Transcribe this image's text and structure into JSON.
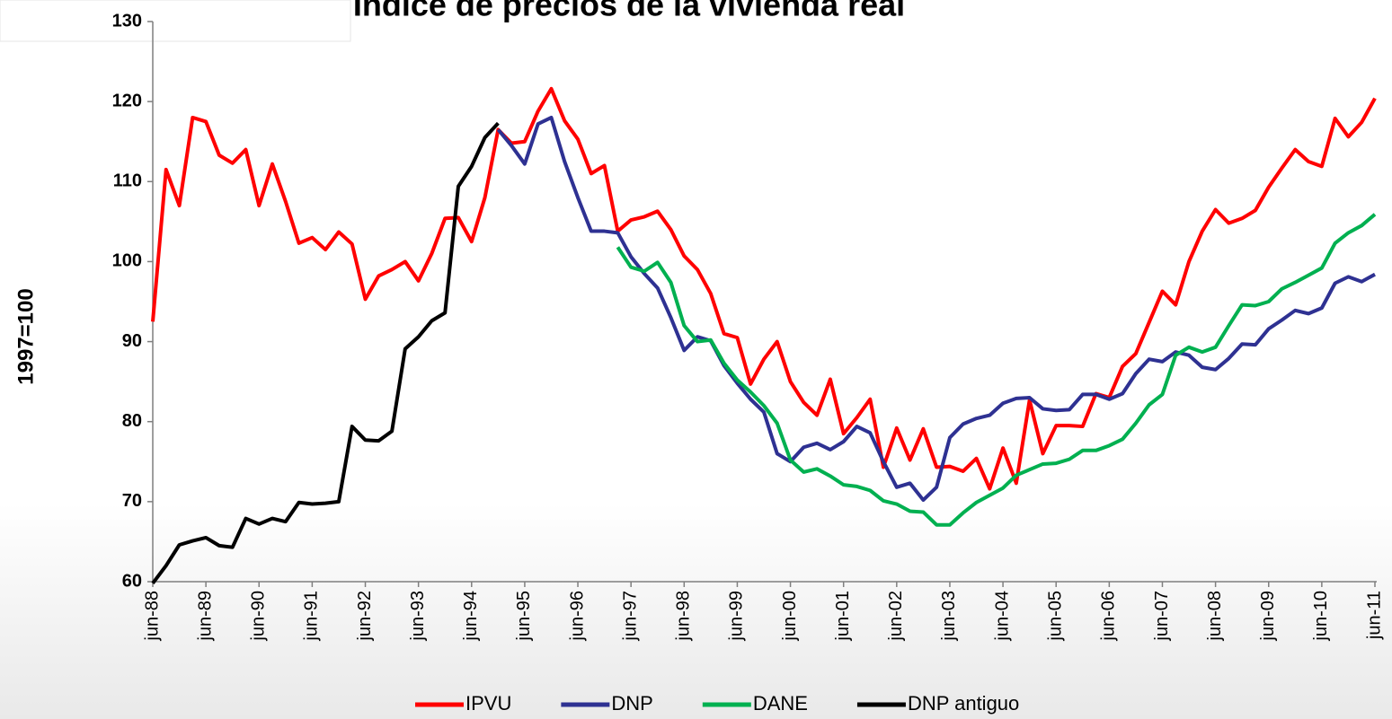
{
  "chart_data": {
    "type": "line",
    "title": "Índice de precios de la vivienda real",
    "y_label": "1997=100",
    "ylim": [
      60,
      130
    ],
    "yticks": [
      60,
      70,
      80,
      90,
      100,
      110,
      120,
      130
    ],
    "categories": [
      "jun-88",
      null,
      null,
      null,
      "jun-89",
      null,
      null,
      null,
      "jun-90",
      null,
      null,
      null,
      "jun-91",
      null,
      null,
      null,
      "jun-92",
      null,
      null,
      null,
      "jun-93",
      null,
      null,
      null,
      "jun-94",
      null,
      null,
      null,
      "jun-95",
      null,
      null,
      null,
      "jun-96",
      null,
      null,
      null,
      "jun-97",
      null,
      null,
      null,
      "jun-98",
      null,
      null,
      null,
      "jun-99",
      null,
      null,
      null,
      "jun-00",
      null,
      null,
      null,
      "jun-01",
      null,
      null,
      null,
      "jun-02",
      null,
      null,
      null,
      "jun-03",
      null,
      null,
      null,
      "jun-04",
      null,
      null,
      null,
      "jun-05",
      null,
      null,
      null,
      "jun-06",
      null,
      null,
      null,
      "jun-07",
      null,
      null,
      null,
      "jun-08",
      null,
      null,
      null,
      "jun-09",
      null,
      null,
      null,
      "jun-10",
      null,
      null,
      null,
      "jun-11"
    ],
    "series": [
      {
        "name": "IPVU",
        "color": "#ff0000",
        "values": [
          92.5,
          111.5,
          107,
          118,
          117.5,
          113.3,
          112.3,
          114,
          107,
          112.2,
          107.5,
          102.3,
          103,
          101.5,
          103.7,
          102.2,
          95.3,
          98.2,
          99,
          100,
          97.6,
          101,
          105.4,
          105.5,
          102.5,
          108,
          116.5,
          114.8,
          115,
          118.8,
          121.6,
          117.6,
          115.3,
          111,
          112,
          103.8,
          105.2,
          105.6,
          106.3,
          104,
          100.7,
          99,
          96,
          91,
          90.5,
          84.7,
          87.8,
          90,
          85,
          82.4,
          80.8,
          85.3,
          78.5,
          80.5,
          82.8,
          74.3,
          79.2,
          75.2,
          79.1,
          74.3,
          74.4,
          73.8,
          75.4,
          71.6,
          76.7,
          72.3,
          82.7,
          76,
          79.5,
          79.5,
          79.4,
          83.5,
          83,
          86.9,
          88.5,
          92.4,
          96.3,
          94.6,
          100,
          103.8,
          106.5,
          104.8,
          105.4,
          106.4,
          109.3,
          111.7,
          114,
          112.5,
          111.9,
          117.9,
          115.6,
          117.4,
          120.4
        ]
      },
      {
        "name": "DNP",
        "color": "#2e3192",
        "values": [
          null,
          null,
          null,
          null,
          null,
          null,
          null,
          null,
          null,
          null,
          null,
          null,
          null,
          null,
          null,
          null,
          null,
          null,
          null,
          null,
          null,
          null,
          null,
          null,
          null,
          null,
          116.5,
          114.5,
          112.2,
          117.2,
          118,
          112.5,
          108,
          103.8,
          103.8,
          103.6,
          100.6,
          98.5,
          96.7,
          93,
          88.9,
          90.6,
          90.1,
          87,
          84.8,
          82.8,
          81.2,
          76,
          75,
          76.8,
          77.3,
          76.5,
          77.5,
          79.4,
          78.6,
          75,
          71.8,
          72.3,
          70.2,
          71.8,
          78,
          79.7,
          80.4,
          80.8,
          82.3,
          82.9,
          83,
          81.6,
          81.4,
          81.5,
          83.4,
          83.4,
          82.8,
          83.5,
          86,
          87.8,
          87.5,
          88.7,
          88.3,
          86.8,
          86.5,
          87.9,
          89.7,
          89.6,
          91.6,
          92.7,
          93.9,
          93.5,
          94.2,
          97.3,
          98.1,
          97.5,
          98.4
        ]
      },
      {
        "name": "DANE",
        "color": "#00b050",
        "values": [
          null,
          null,
          null,
          null,
          null,
          null,
          null,
          null,
          null,
          null,
          null,
          null,
          null,
          null,
          null,
          null,
          null,
          null,
          null,
          null,
          null,
          null,
          null,
          null,
          null,
          null,
          null,
          null,
          null,
          null,
          null,
          null,
          null,
          null,
          null,
          101.8,
          99.3,
          98.8,
          99.9,
          97.4,
          92,
          90,
          90.2,
          87.3,
          85.2,
          83.7,
          82,
          79.8,
          75.2,
          73.7,
          74.1,
          73.2,
          72.1,
          71.9,
          71.4,
          70.1,
          69.7,
          68.8,
          68.7,
          67.1,
          67.1,
          68.6,
          69.9,
          70.8,
          71.7,
          73.3,
          74,
          74.7,
          74.8,
          75.3,
          76.4,
          76.4,
          77,
          77.8,
          79.8,
          82.1,
          83.4,
          88.3,
          89.3,
          88.7,
          89.3,
          92,
          94.6,
          94.5,
          95,
          96.6,
          97.4,
          98.3,
          99.2,
          102.3,
          103.6,
          104.5,
          105.9
        ]
      },
      {
        "name": "DNP antiguo",
        "color": "#000000",
        "values": [
          59.8,
          62,
          64.6,
          65.1,
          65.5,
          64.5,
          64.3,
          67.9,
          67.2,
          67.9,
          67.5,
          69.9,
          69.7,
          69.8,
          70,
          79.4,
          77.7,
          77.6,
          78.8,
          89.1,
          90.6,
          92.6,
          93.6,
          109.4,
          111.9,
          115.5,
          117.3,
          null,
          null,
          null,
          null,
          null,
          null,
          null,
          null,
          null,
          null,
          null,
          null,
          null,
          null,
          null,
          null,
          null,
          null,
          null,
          null,
          null,
          null,
          null,
          null,
          null,
          null,
          null,
          null,
          null,
          null,
          null,
          null,
          null,
          null,
          null,
          null,
          null,
          null,
          null,
          null,
          null,
          null,
          null,
          null,
          null,
          null,
          null,
          null,
          null,
          null,
          null,
          null,
          null,
          null,
          null,
          null,
          null,
          null,
          null,
          null,
          null,
          null,
          null,
          null,
          null,
          null
        ]
      }
    ]
  }
}
